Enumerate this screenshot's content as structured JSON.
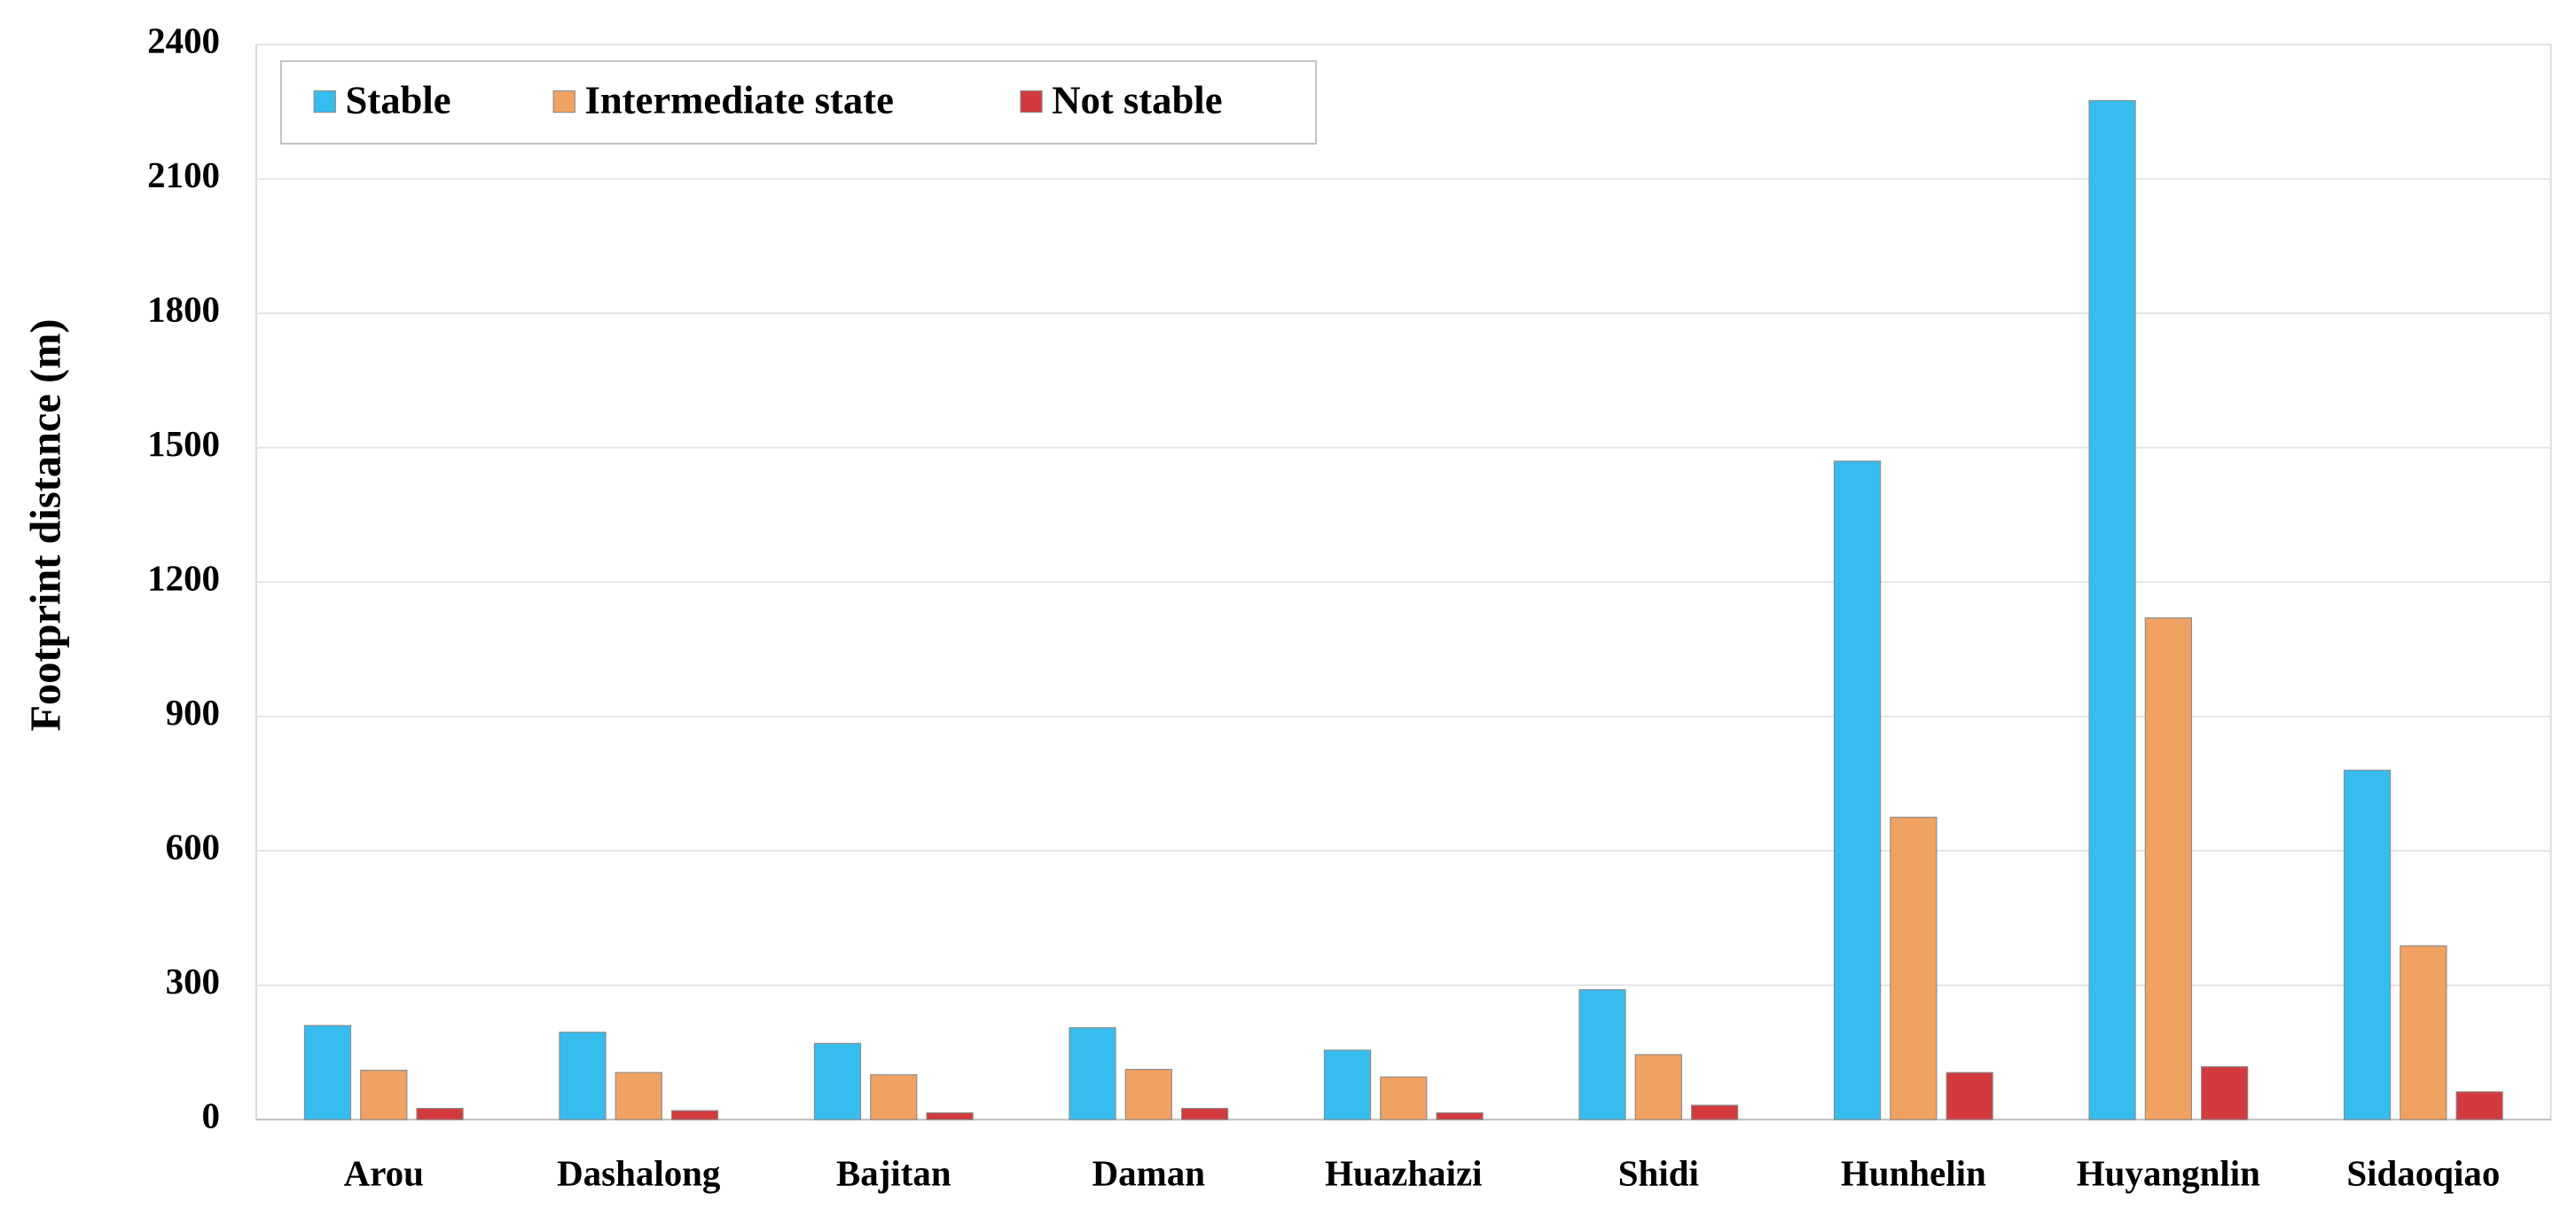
{
  "chart_data": {
    "type": "bar",
    "y_label": "Footprint distance (m)",
    "categories": [
      "Arou",
      "Dashalong",
      "Bajitan",
      "Daman",
      "Huazhaizi",
      "Shidi",
      "Hunhelin",
      "Huyangnlin",
      "Sidaoqiao"
    ],
    "series": [
      {
        "name": "Stable",
        "color": "#36bdee",
        "values": [
          210,
          195,
          170,
          205,
          155,
          290,
          1470,
          2275,
          780
        ]
      },
      {
        "name": "Intermediate state",
        "color": "#f0a263",
        "values": [
          110,
          105,
          100,
          112,
          95,
          145,
          675,
          1120,
          388
        ]
      },
      {
        "name": "Not stable",
        "color": "#d33a3e",
        "values": [
          25,
          20,
          15,
          25,
          15,
          32,
          105,
          118,
          62
        ]
      }
    ],
    "ylim": [
      0,
      2400
    ],
    "yticks": [
      0,
      300,
      600,
      900,
      1200,
      1500,
      1800,
      2100,
      2400
    ],
    "grid": true,
    "legend": "top-left"
  }
}
